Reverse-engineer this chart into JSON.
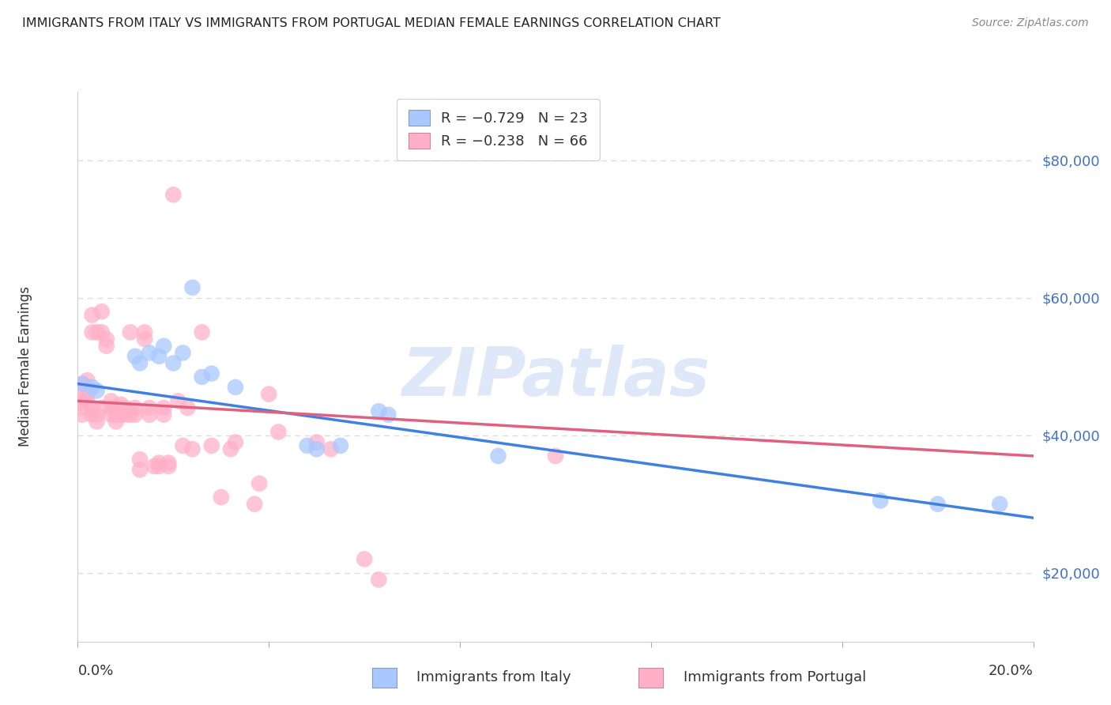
{
  "title": "IMMIGRANTS FROM ITALY VS IMMIGRANTS FROM PORTUGAL MEDIAN FEMALE EARNINGS CORRELATION CHART",
  "source": "Source: ZipAtlas.com",
  "ylabel": "Median Female Earnings",
  "right_yticks": [
    "$80,000",
    "$60,000",
    "$40,000",
    "$20,000"
  ],
  "right_ytick_values": [
    80000,
    60000,
    40000,
    20000
  ],
  "watermark": "ZIPatlas",
  "legend_italy_r": "R = −0.729",
  "legend_italy_n": "N = 23",
  "legend_portugal_r": "R = −0.238",
  "legend_portugal_n": "N = 66",
  "italy_color": "#A8C8FF",
  "portugal_color": "#FFB0C8",
  "italy_line_color": "#4080E0",
  "portugal_line_color": "#E06080",
  "italy_scatter": [
    [
      0.001,
      47500
    ],
    [
      0.003,
      47000
    ],
    [
      0.004,
      46500
    ],
    [
      0.012,
      51500
    ],
    [
      0.013,
      50500
    ],
    [
      0.015,
      52000
    ],
    [
      0.017,
      51500
    ],
    [
      0.018,
      53000
    ],
    [
      0.02,
      50500
    ],
    [
      0.022,
      52000
    ],
    [
      0.024,
      61500
    ],
    [
      0.026,
      48500
    ],
    [
      0.028,
      49000
    ],
    [
      0.033,
      47000
    ],
    [
      0.048,
      38500
    ],
    [
      0.05,
      38000
    ],
    [
      0.055,
      38500
    ],
    [
      0.063,
      43500
    ],
    [
      0.065,
      43000
    ],
    [
      0.088,
      37000
    ],
    [
      0.168,
      30500
    ],
    [
      0.18,
      30000
    ],
    [
      0.193,
      30000
    ]
  ],
  "portugal_scatter": [
    [
      0.001,
      47500
    ],
    [
      0.001,
      46000
    ],
    [
      0.001,
      45000
    ],
    [
      0.001,
      44000
    ],
    [
      0.001,
      43000
    ],
    [
      0.002,
      48000
    ],
    [
      0.002,
      47000
    ],
    [
      0.002,
      46000
    ],
    [
      0.002,
      45000
    ],
    [
      0.003,
      57500
    ],
    [
      0.003,
      55000
    ],
    [
      0.003,
      44000
    ],
    [
      0.003,
      43000
    ],
    [
      0.004,
      55000
    ],
    [
      0.004,
      43000
    ],
    [
      0.004,
      42000
    ],
    [
      0.005,
      58000
    ],
    [
      0.005,
      55000
    ],
    [
      0.005,
      44000
    ],
    [
      0.006,
      54000
    ],
    [
      0.006,
      53000
    ],
    [
      0.007,
      45000
    ],
    [
      0.007,
      44000
    ],
    [
      0.007,
      43000
    ],
    [
      0.008,
      43000
    ],
    [
      0.008,
      42000
    ],
    [
      0.009,
      44500
    ],
    [
      0.009,
      43000
    ],
    [
      0.01,
      44000
    ],
    [
      0.01,
      43000
    ],
    [
      0.011,
      55000
    ],
    [
      0.011,
      43000
    ],
    [
      0.012,
      44000
    ],
    [
      0.012,
      43000
    ],
    [
      0.013,
      36500
    ],
    [
      0.013,
      35000
    ],
    [
      0.014,
      55000
    ],
    [
      0.014,
      54000
    ],
    [
      0.015,
      44000
    ],
    [
      0.015,
      43000
    ],
    [
      0.016,
      35500
    ],
    [
      0.017,
      36000
    ],
    [
      0.017,
      35500
    ],
    [
      0.018,
      44000
    ],
    [
      0.018,
      43000
    ],
    [
      0.019,
      36000
    ],
    [
      0.019,
      35500
    ],
    [
      0.02,
      75000
    ],
    [
      0.021,
      45000
    ],
    [
      0.022,
      38500
    ],
    [
      0.023,
      44000
    ],
    [
      0.024,
      38000
    ],
    [
      0.026,
      55000
    ],
    [
      0.028,
      38500
    ],
    [
      0.03,
      31000
    ],
    [
      0.032,
      38000
    ],
    [
      0.033,
      39000
    ],
    [
      0.037,
      30000
    ],
    [
      0.038,
      33000
    ],
    [
      0.04,
      46000
    ],
    [
      0.042,
      40500
    ],
    [
      0.05,
      39000
    ],
    [
      0.053,
      38000
    ],
    [
      0.06,
      22000
    ],
    [
      0.063,
      19000
    ],
    [
      0.1,
      37000
    ]
  ],
  "xlim": [
    0.0,
    0.2
  ],
  "ylim": [
    10000,
    90000
  ],
  "background_color": "#FFFFFF",
  "grid_color": "#DDDDDD",
  "italy_reg": [
    0.0,
    0.2,
    47500,
    28000
  ],
  "portugal_reg": [
    0.0,
    0.2,
    45000,
    37000
  ]
}
